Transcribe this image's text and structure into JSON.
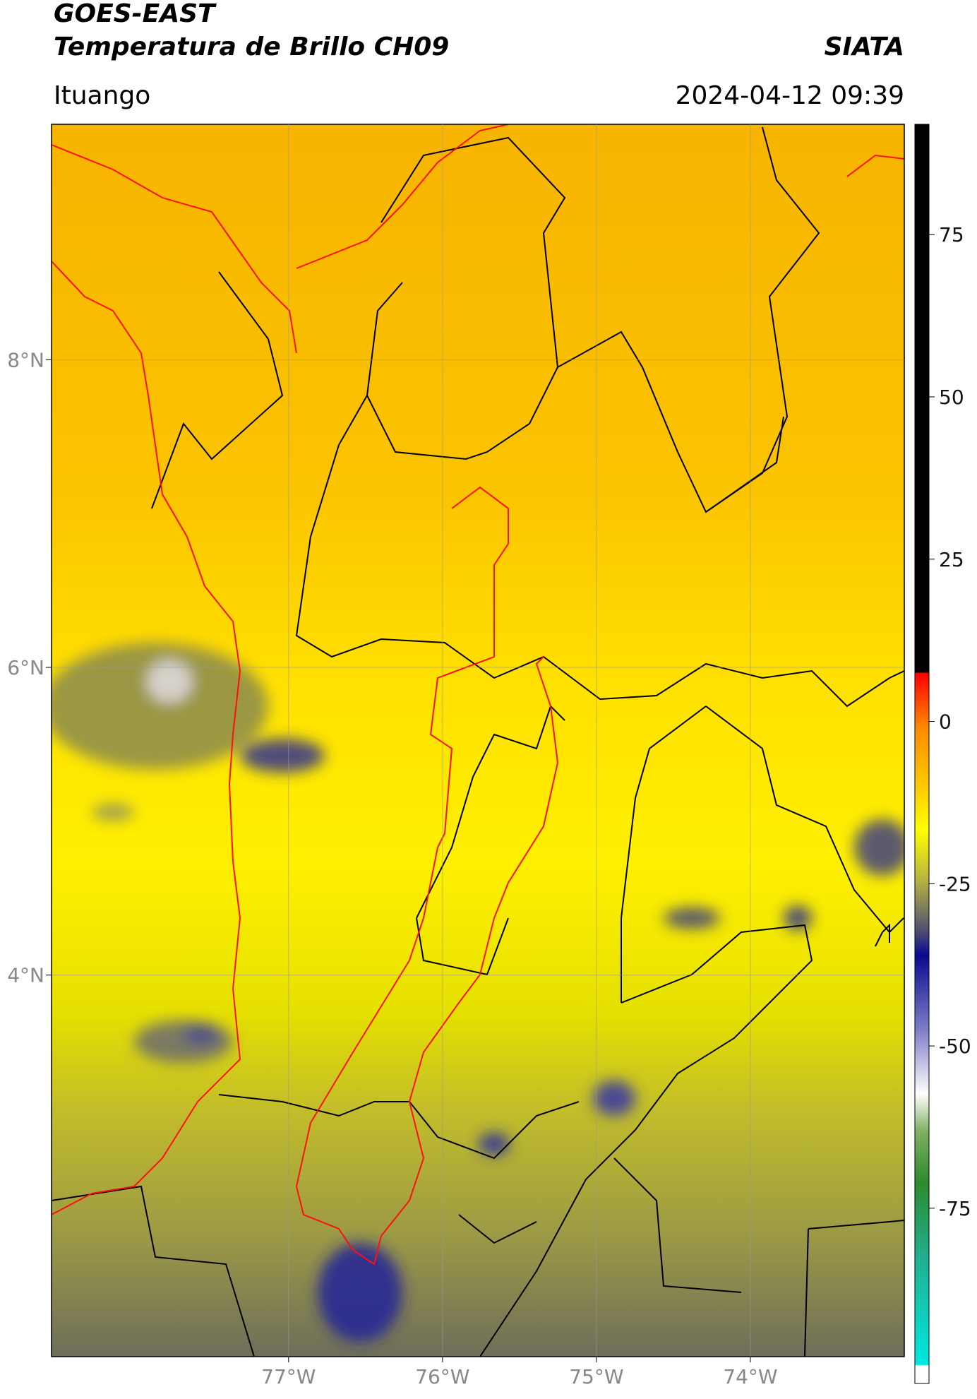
{
  "header": {
    "title": "GOES-EAST",
    "subtitle": "Temperatura de Brillo CH09",
    "brand": "SIATA",
    "location": "Ituango",
    "datetime": "2024-04-12 09:39"
  },
  "map": {
    "xlim": [
      -78.54,
      -73.0
    ],
    "ylim": [
      1.52,
      9.53
    ],
    "yticks": [
      {
        "value": 8,
        "label": "8°N"
      },
      {
        "value": 6,
        "label": "6°N"
      },
      {
        "value": 4,
        "label": "4°N"
      }
    ],
    "xticks": [
      {
        "value": -77,
        "label": "77°W"
      },
      {
        "value": -76,
        "label": "76°W"
      },
      {
        "value": -75,
        "label": "75°W"
      },
      {
        "value": -74,
        "label": "74°W"
      }
    ],
    "grid": true
  },
  "colorbar": {
    "lim": [
      -102,
      92
    ],
    "ticks": [
      75,
      50,
      25,
      0,
      -25,
      -50,
      -75
    ]
  }
}
